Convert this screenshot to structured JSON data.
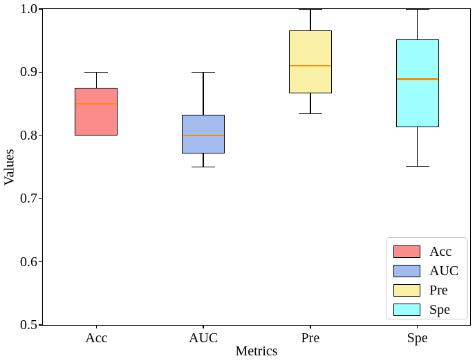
{
  "chart_data": {
    "type": "boxplot",
    "title": "",
    "xlabel": "Metrics",
    "ylabel": "Values",
    "categories": [
      "Acc",
      "AUC",
      "Pre",
      "Spe"
    ],
    "series": [
      {
        "name": "Acc",
        "min": 0.8,
        "q1": 0.8,
        "median": 0.85,
        "q3": 0.875,
        "max": 0.9,
        "color": "#FA8C8C"
      },
      {
        "name": "AUC",
        "min": 0.75,
        "q1": 0.771,
        "median": 0.8,
        "q3": 0.833,
        "max": 0.9,
        "color": "#A2BCF0"
      },
      {
        "name": "Pre",
        "min": 0.834,
        "q1": 0.867,
        "median": 0.91,
        "q3": 0.966,
        "max": 1.0,
        "color": "#FAF0A6"
      },
      {
        "name": "Spe",
        "min": 0.751,
        "q1": 0.813,
        "median": 0.889,
        "q3": 0.952,
        "max": 1.0,
        "color": "#9FFEFE"
      }
    ],
    "ylim": [
      0.5,
      1.0
    ],
    "yticks": [
      1.0,
      0.9,
      0.8,
      0.7,
      0.6,
      0.5
    ],
    "ytick_labels": [
      "1.0",
      "0.9",
      "0.8",
      "0.7",
      "0.6",
      "0.5"
    ],
    "median_color": "#FF8C00",
    "grid": false,
    "legend": {
      "position": "lower right",
      "items": [
        "Acc",
        "AUC",
        "Pre",
        "Spe"
      ]
    }
  }
}
